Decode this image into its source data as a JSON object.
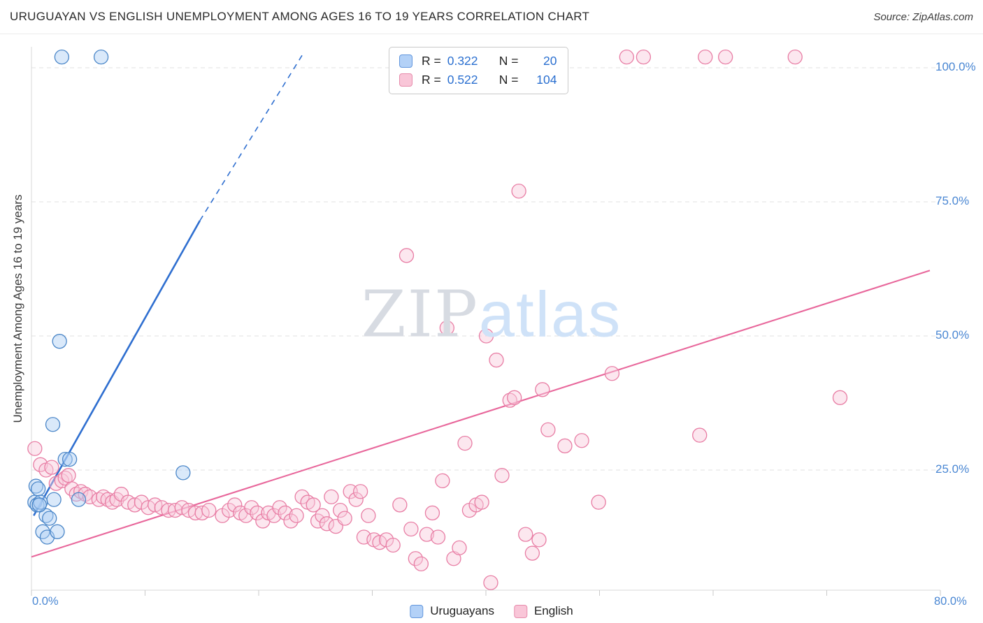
{
  "header": {
    "title": "URUGUAYAN VS ENGLISH UNEMPLOYMENT AMONG AGES 16 TO 19 YEARS CORRELATION CHART",
    "source": "Source: ZipAtlas.com"
  },
  "watermark": {
    "zip": "ZIP",
    "atlas": "atlas"
  },
  "stats_legend": {
    "rows": [
      {
        "series": "Uruguayans",
        "r_label": "R =",
        "r_value": "0.322",
        "n_label": "N =",
        "n_value": "20"
      },
      {
        "series": "English",
        "r_label": "R =",
        "r_value": "0.522",
        "n_label": "N =",
        "n_value": "104"
      }
    ]
  },
  "bottom_legend": {
    "items": [
      {
        "label": "Uruguayans"
      },
      {
        "label": "English"
      }
    ]
  },
  "axes": {
    "y_label": "Unemployment Among Ages 16 to 19 years",
    "y_ticks": [
      {
        "label": "100.0%",
        "value": 1.0
      },
      {
        "label": "75.0%",
        "value": 0.75
      },
      {
        "label": "50.0%",
        "value": 0.5
      },
      {
        "label": "25.0%",
        "value": 0.25
      }
    ],
    "x_tick_left": "0.0%",
    "x_tick_right": "80.0%"
  },
  "chart_data": {
    "type": "scatter",
    "title": "URUGUAYAN VS ENGLISH UNEMPLOYMENT AMONG AGES 16 TO 19 YEARS CORRELATION CHART",
    "xlabel": "",
    "ylabel": "Unemployment Among Ages 16 to 19 years",
    "xlim": [
      0,
      0.8
    ],
    "ylim": [
      0,
      1.05
    ],
    "grid": "horizontal-dashed",
    "legend_position": "top-center",
    "series": [
      {
        "name": "Uruguayans",
        "r": 0.322,
        "n": 20,
        "fill": "#AECFF5",
        "stroke": "#4A86C8",
        "line_color": "#2F6FD0",
        "trend": {
          "solid": [
            [
              0.002,
              0.165
            ],
            [
              0.15,
              0.715
            ]
          ],
          "dashed": [
            [
              0.15,
              0.715
            ],
            [
              0.243,
              1.03
            ]
          ]
        },
        "points": [
          [
            0.027,
            1.02
          ],
          [
            0.062,
            1.02
          ],
          [
            0.025,
            0.49
          ],
          [
            0.019,
            0.335
          ],
          [
            0.03,
            0.27
          ],
          [
            0.034,
            0.27
          ],
          [
            0.004,
            0.22
          ],
          [
            0.006,
            0.215
          ],
          [
            0.003,
            0.19
          ],
          [
            0.005,
            0.185
          ],
          [
            0.008,
            0.19
          ],
          [
            0.02,
            0.195
          ],
          [
            0.042,
            0.195
          ],
          [
            0.013,
            0.165
          ],
          [
            0.016,
            0.16
          ],
          [
            0.01,
            0.135
          ],
          [
            0.014,
            0.125
          ],
          [
            0.023,
            0.135
          ],
          [
            0.135,
            0.245
          ],
          [
            0.007,
            0.185
          ]
        ]
      },
      {
        "name": "English",
        "r": 0.522,
        "n": 104,
        "fill": "#F9C9DB",
        "stroke": "#E87DA4",
        "line_color": "#E8679B",
        "trend": {
          "solid": [
            [
              0.0,
              0.088
            ],
            [
              0.8,
              0.622
            ]
          ]
        },
        "points": [
          [
            0.003,
            0.29
          ],
          [
            0.008,
            0.26
          ],
          [
            0.013,
            0.25
          ],
          [
            0.018,
            0.255
          ],
          [
            0.022,
            0.225
          ],
          [
            0.027,
            0.23
          ],
          [
            0.03,
            0.235
          ],
          [
            0.033,
            0.24
          ],
          [
            0.036,
            0.215
          ],
          [
            0.04,
            0.205
          ],
          [
            0.044,
            0.21
          ],
          [
            0.048,
            0.205
          ],
          [
            0.052,
            0.2
          ],
          [
            0.06,
            0.195
          ],
          [
            0.064,
            0.2
          ],
          [
            0.068,
            0.195
          ],
          [
            0.072,
            0.19
          ],
          [
            0.076,
            0.195
          ],
          [
            0.08,
            0.205
          ],
          [
            0.086,
            0.19
          ],
          [
            0.092,
            0.185
          ],
          [
            0.098,
            0.19
          ],
          [
            0.104,
            0.18
          ],
          [
            0.11,
            0.185
          ],
          [
            0.116,
            0.18
          ],
          [
            0.122,
            0.175
          ],
          [
            0.128,
            0.175
          ],
          [
            0.134,
            0.18
          ],
          [
            0.14,
            0.175
          ],
          [
            0.146,
            0.17
          ],
          [
            0.152,
            0.17
          ],
          [
            0.158,
            0.175
          ],
          [
            0.17,
            0.165
          ],
          [
            0.176,
            0.175
          ],
          [
            0.181,
            0.185
          ],
          [
            0.186,
            0.17
          ],
          [
            0.191,
            0.165
          ],
          [
            0.196,
            0.18
          ],
          [
            0.201,
            0.17
          ],
          [
            0.206,
            0.155
          ],
          [
            0.211,
            0.17
          ],
          [
            0.216,
            0.165
          ],
          [
            0.221,
            0.18
          ],
          [
            0.226,
            0.17
          ],
          [
            0.231,
            0.155
          ],
          [
            0.236,
            0.165
          ],
          [
            0.241,
            0.2
          ],
          [
            0.246,
            0.19
          ],
          [
            0.251,
            0.185
          ],
          [
            0.255,
            0.155
          ],
          [
            0.259,
            0.165
          ],
          [
            0.263,
            0.15
          ],
          [
            0.267,
            0.2
          ],
          [
            0.271,
            0.145
          ],
          [
            0.275,
            0.175
          ],
          [
            0.279,
            0.16
          ],
          [
            0.284,
            0.21
          ],
          [
            0.289,
            0.195
          ],
          [
            0.293,
            0.21
          ],
          [
            0.296,
            0.125
          ],
          [
            0.3,
            0.165
          ],
          [
            0.305,
            0.12
          ],
          [
            0.31,
            0.115
          ],
          [
            0.316,
            0.12
          ],
          [
            0.322,
            0.11
          ],
          [
            0.328,
            0.185
          ],
          [
            0.334,
            0.65
          ],
          [
            0.338,
            0.14
          ],
          [
            0.342,
            0.085
          ],
          [
            0.347,
            0.075
          ],
          [
            0.352,
            0.13
          ],
          [
            0.357,
            0.17
          ],
          [
            0.362,
            0.125
          ],
          [
            0.366,
            0.23
          ],
          [
            0.37,
            0.515
          ],
          [
            0.376,
            0.085
          ],
          [
            0.381,
            0.105
          ],
          [
            0.386,
            0.3
          ],
          [
            0.39,
            0.175
          ],
          [
            0.396,
            0.185
          ],
          [
            0.401,
            0.19
          ],
          [
            0.405,
            0.5
          ],
          [
            0.409,
            0.04
          ],
          [
            0.414,
            0.455
          ],
          [
            0.419,
            0.24
          ],
          [
            0.426,
            0.38
          ],
          [
            0.43,
            0.385
          ],
          [
            0.434,
            0.77
          ],
          [
            0.44,
            0.13
          ],
          [
            0.446,
            0.095
          ],
          [
            0.452,
            0.12
          ],
          [
            0.455,
            0.4
          ],
          [
            0.46,
            0.325
          ],
          [
            0.475,
            0.295
          ],
          [
            0.49,
            0.305
          ],
          [
            0.505,
            0.19
          ],
          [
            0.517,
            0.43
          ],
          [
            0.53,
            1.02
          ],
          [
            0.545,
            1.02
          ],
          [
            0.595,
            0.315
          ],
          [
            0.6,
            1.02
          ],
          [
            0.618,
            1.02
          ],
          [
            0.68,
            1.02
          ],
          [
            0.72,
            0.385
          ]
        ]
      }
    ]
  }
}
